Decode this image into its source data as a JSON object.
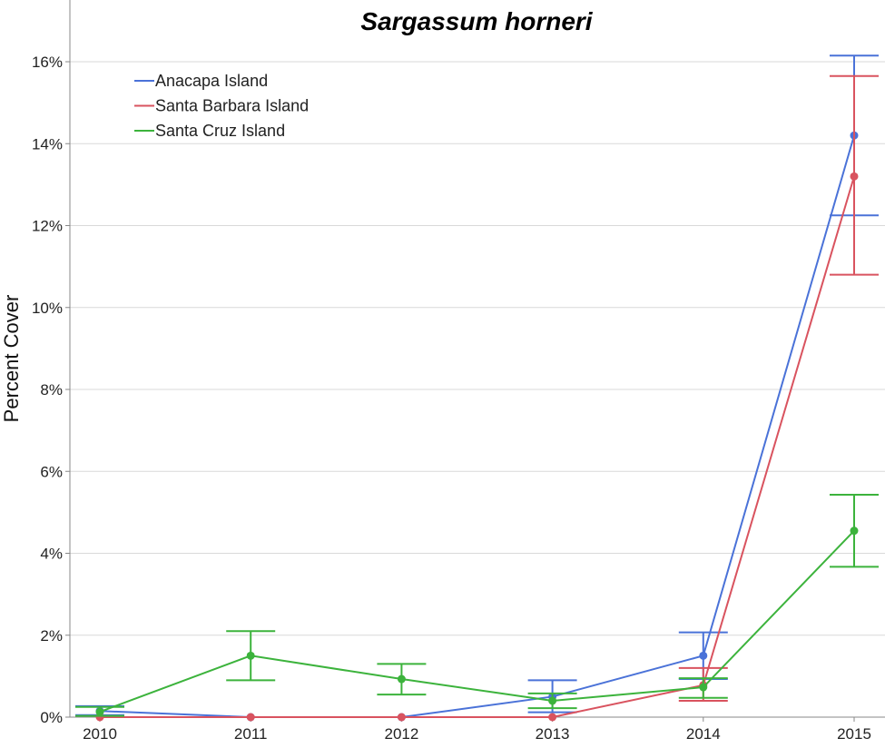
{
  "chart_data": {
    "type": "line",
    "title": "Sargassum horneri",
    "xlabel": "",
    "ylabel": "Percent Cover",
    "x": [
      2010,
      2011,
      2012,
      2013,
      2014,
      2015
    ],
    "x_tick_labels": [
      "2010",
      "2011",
      "2012",
      "2013",
      "2014",
      "2015"
    ],
    "y_tick_labels": [
      "0%",
      "2%",
      "4%",
      "6%",
      "8%",
      "10%",
      "12%",
      "14%",
      "16%"
    ],
    "ylim": [
      0,
      17
    ],
    "y_ticks": [
      0,
      2,
      4,
      6,
      8,
      10,
      12,
      14,
      16
    ],
    "grid": "horizontal",
    "legend_position": "top-left",
    "series": [
      {
        "name": "Anacapa Island",
        "color": "#4a72d8",
        "x": [
          2010,
          2011,
          2012,
          2013,
          2014,
          2015
        ],
        "values": [
          0.15,
          0.0,
          0.0,
          0.5,
          1.5,
          14.2
        ],
        "error_low": [
          0.05,
          null,
          null,
          0.12,
          0.93,
          12.25
        ],
        "error_high": [
          0.27,
          null,
          null,
          0.9,
          2.07,
          16.15
        ]
      },
      {
        "name": "Santa Barbara Island",
        "color": "#d9535f",
        "x": [
          2010,
          2011,
          2012,
          2013,
          2014,
          2015
        ],
        "values": [
          0.0,
          0.0,
          0.0,
          0.0,
          0.78,
          13.2
        ],
        "error_low": [
          null,
          null,
          null,
          null,
          0.4,
          10.8
        ],
        "error_high": [
          null,
          null,
          null,
          null,
          1.2,
          15.65
        ]
      },
      {
        "name": "Santa Cruz Island",
        "color": "#3cb33c",
        "x": [
          2010,
          2011,
          2012,
          2013,
          2014,
          2015
        ],
        "values": [
          0.13,
          1.5,
          0.93,
          0.4,
          0.73,
          4.55
        ],
        "error_low": [
          0.03,
          0.9,
          0.55,
          0.22,
          0.47,
          3.67
        ],
        "error_high": [
          0.25,
          2.1,
          1.3,
          0.58,
          0.95,
          5.43
        ]
      }
    ]
  }
}
